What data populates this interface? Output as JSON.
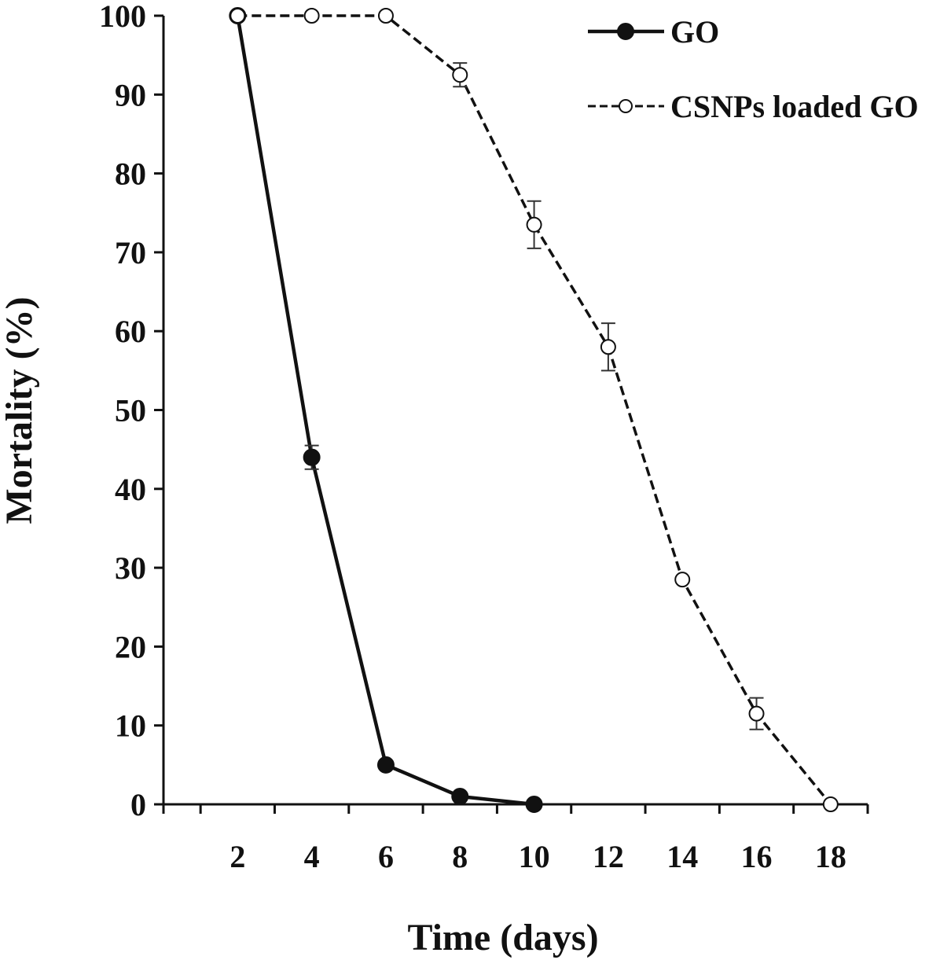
{
  "chart_data": {
    "type": "line",
    "title": "",
    "xlabel": "Time (days)",
    "ylabel": "Mortality (%)",
    "x_ticks": [
      2,
      4,
      6,
      8,
      10,
      12,
      14,
      16,
      18
    ],
    "y_ticks": [
      0,
      10,
      20,
      30,
      40,
      50,
      60,
      70,
      80,
      90,
      100
    ],
    "xlim": [
      0,
      19
    ],
    "ylim": [
      0,
      100
    ],
    "grid": false,
    "legend_position": "top-right",
    "series": [
      {
        "name": "GO",
        "style": "solid",
        "marker": "filled-circle",
        "color": "#111111",
        "x": [
          2,
          4,
          6,
          8,
          10
        ],
        "y": [
          100,
          44,
          5,
          1,
          0
        ],
        "error": [
          0,
          1.5,
          0,
          0,
          0
        ]
      },
      {
        "name": "CSNPs loaded GO",
        "style": "dashed",
        "marker": "open-circle",
        "color": "#111111",
        "x": [
          2,
          4,
          6,
          8,
          10,
          12,
          14,
          16,
          18
        ],
        "y": [
          100,
          100,
          100,
          92.5,
          73.5,
          58,
          28.5,
          11.5,
          0
        ],
        "error": [
          0,
          0,
          0,
          1.5,
          3,
          3,
          0,
          2,
          0
        ]
      }
    ]
  }
}
